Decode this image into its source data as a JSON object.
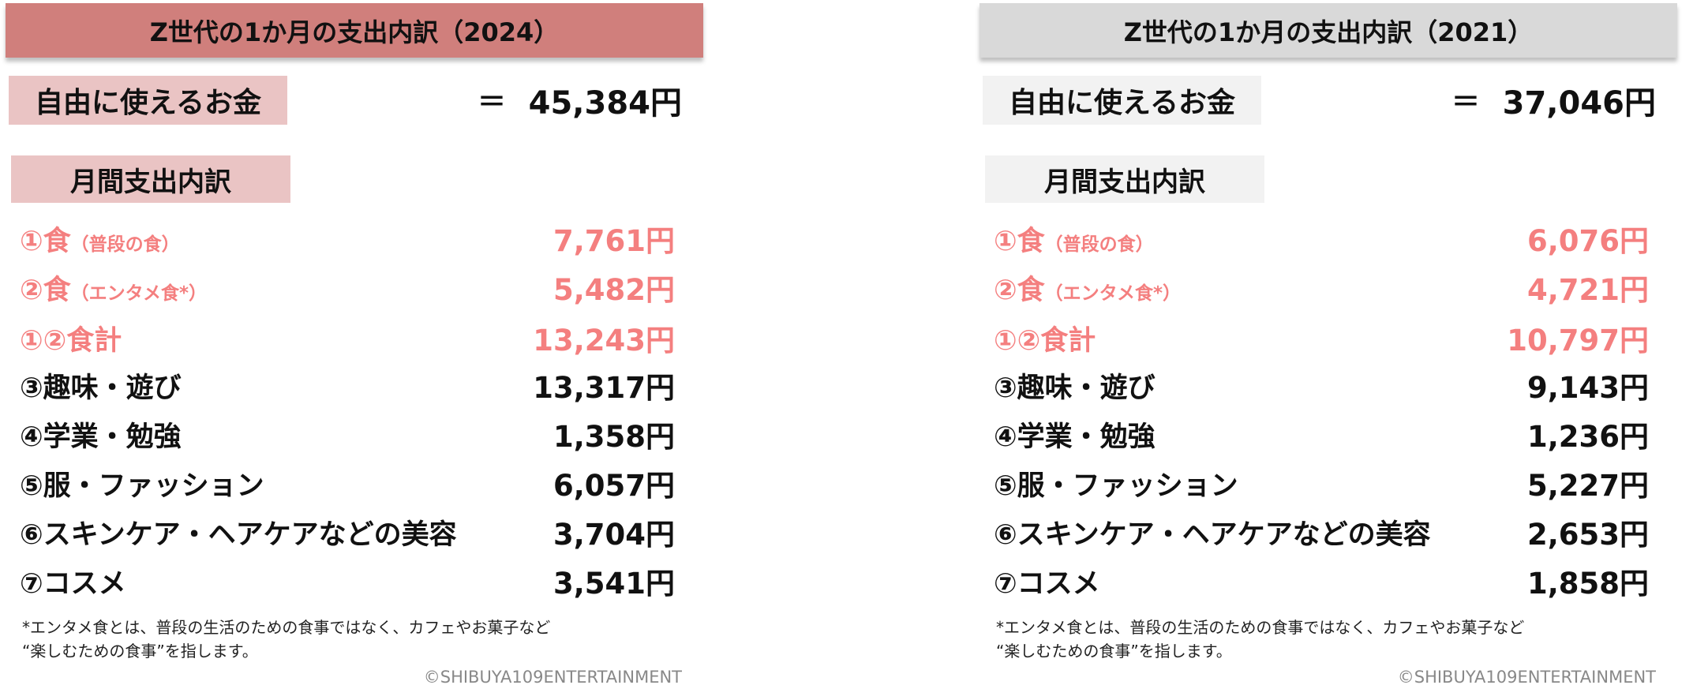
{
  "colors": {
    "title_2024": "#d07f7c",
    "box_2024": "#eac4c4",
    "title_2021": "#d9d9d9",
    "box_2021": "#f2f2f2",
    "food_text": "#f47f7f"
  },
  "panels": [
    {
      "title": "Z世代の1か月の支出内訳（2024）",
      "free_label": "自由に使えるお金",
      "equals": "＝",
      "free_value": "45,384円",
      "monthly_label": "月間支出内訳",
      "rows": [
        {
          "label": "①食",
          "sub": "（普段の食）",
          "value": "7,761円",
          "highlight": true
        },
        {
          "label": "②食",
          "sub": "（エンタメ食*）",
          "value": "5,482円",
          "highlight": true
        },
        {
          "label": "①②食計",
          "sub": "",
          "value": "13,243円",
          "highlight": true
        },
        {
          "label": "③趣味・遊び",
          "sub": "",
          "value": "13,317円",
          "highlight": false
        },
        {
          "label": "④学業・勉強",
          "sub": "",
          "value": "1,358円",
          "highlight": false
        },
        {
          "label": "⑤服・ファッション",
          "sub": "",
          "value": "6,057円",
          "highlight": false
        },
        {
          "label": "⑥スキンケア・ヘアケアなどの美容",
          "sub": "",
          "value": "3,704円",
          "highlight": false
        },
        {
          "label": "⑦コスメ",
          "sub": "",
          "value": "3,541円",
          "highlight": false
        }
      ],
      "footnote_1": "*エンタメ食とは、普段の生活のための食事ではなく、カフェやお菓子など",
      "footnote_2": "“楽しむための食事”を指します。",
      "copyright": "©SHIBUYA109ENTERTAINMENT"
    },
    {
      "title": "Z世代の1か月の支出内訳（2021）",
      "free_label": "自由に使えるお金",
      "equals": "＝",
      "free_value": "37,046円",
      "monthly_label": "月間支出内訳",
      "rows": [
        {
          "label": "①食",
          "sub": "（普段の食）",
          "value": "6,076円",
          "highlight": true
        },
        {
          "label": "②食",
          "sub": "（エンタメ食*）",
          "value": "4,721円",
          "highlight": true
        },
        {
          "label": "①②食計",
          "sub": "",
          "value": "10,797円",
          "highlight": true
        },
        {
          "label": "③趣味・遊び",
          "sub": "",
          "value": "9,143円",
          "highlight": false
        },
        {
          "label": "④学業・勉強",
          "sub": "",
          "value": "1,236円",
          "highlight": false
        },
        {
          "label": "⑤服・ファッション",
          "sub": "",
          "value": "5,227円",
          "highlight": false
        },
        {
          "label": "⑥スキンケア・ヘアケアなどの美容",
          "sub": "",
          "value": "2,653円",
          "highlight": false
        },
        {
          "label": "⑦コスメ",
          "sub": "",
          "value": "1,858円",
          "highlight": false
        }
      ],
      "footnote_1": "*エンタメ食とは、普段の生活のための食事ではなく、カフェやお菓子など",
      "footnote_2": "“楽しむための食事”を指します。",
      "copyright": "©SHIBUYA109ENTERTAINMENT"
    }
  ]
}
